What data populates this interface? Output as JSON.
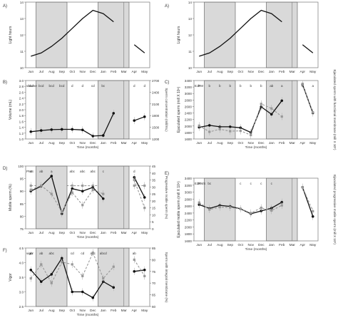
{
  "months": [
    "Jun",
    "Jul",
    "Aug",
    "Sep",
    "Oct",
    "Nov",
    "Dec",
    "Jan",
    "Feb",
    "Mar",
    "Apr",
    "May"
  ],
  "time_label": "Time (months)",
  "colors": {
    "solid": "#111111",
    "dashed": "#999999",
    "shade": "#d9d9d9"
  },
  "chart_data": [
    {
      "id": "A_left",
      "type": "line",
      "panel": "A)",
      "ylabel": "Light hours",
      "ylim": [
        10,
        14
      ],
      "yticks": [
        10,
        11,
        12,
        13,
        14
      ],
      "series": [
        {
          "values": [
            10.7,
            10.9,
            11.3,
            11.8,
            12.4,
            13.0,
            13.5,
            13.3,
            12.8,
            12.1,
            11.4,
            10.9
          ]
        }
      ],
      "shaded": [
        [
          1,
          3
        ],
        [
          7,
          9
        ]
      ]
    },
    {
      "id": "A_right",
      "type": "line",
      "panel": "A)",
      "ylabel": "Light hours",
      "ylim": [
        10,
        14
      ],
      "yticks": [
        10,
        11,
        12,
        13,
        14
      ],
      "series": [
        {
          "values": [
            10.7,
            10.9,
            11.3,
            11.8,
            12.4,
            13.0,
            13.5,
            13.3,
            12.8,
            12.1,
            11.4,
            10.9
          ]
        }
      ],
      "shaded": [
        [
          1,
          3
        ],
        [
          7,
          9
        ]
      ]
    },
    {
      "id": "B",
      "type": "line",
      "panel": "B)",
      "ylabel": "Volume (mL)",
      "ylabel2": "Sperm concentration (mill/mL)",
      "ylim": [
        1.0,
        3.0
      ],
      "yticks": [
        1.0,
        1.2,
        1.4,
        1.6,
        1.8,
        2.0,
        2.2,
        2.4,
        2.6,
        2.8,
        3.0
      ],
      "ylim2": [
        1200,
        2700
      ],
      "yticks2": [
        1200,
        1500,
        1800,
        2100,
        2400,
        2700
      ],
      "sig_label": "volume",
      "sig_letters": [
        "bcd",
        "bcd",
        "bcd",
        "bcd",
        "d",
        "d",
        "cd",
        "bc",
        "",
        "",
        "d",
        "d"
      ],
      "sig_letters2": [
        "",
        "",
        "",
        "",
        "",
        "",
        "",
        "",
        "",
        "",
        "",
        ""
      ],
      "series": [
        {
          "style": "solid",
          "values": [
            1.25,
            1.29,
            1.32,
            1.33,
            1.33,
            1.31,
            1.1,
            1.12,
            1.88,
            null,
            1.63,
            1.76
          ]
        },
        {
          "style": "dashed",
          "values": [
            1.39,
            1.22,
            1.19,
            1.22,
            1.6,
            0.9,
            1.28,
            1.8,
            1.38,
            null,
            2.4,
            1.6
          ],
          "axis": 2
        }
      ],
      "shaded": [
        [
          1,
          3
        ],
        [
          7,
          9
        ]
      ]
    },
    {
      "id": "C",
      "type": "line",
      "panel": "C)",
      "ylabel": "Ejaculated sperm (mill X 10⁶)",
      "ylabel2": "Ejaculated sperm with functional membrane (mill X 10⁶)",
      "ylim": [
        1600,
        3400
      ],
      "yticks": [
        1600,
        1800,
        2000,
        2200,
        2400,
        2600,
        2800,
        3000,
        3200,
        3400
      ],
      "sig_label": "EJFM",
      "sig_letters": [
        "b",
        "b",
        "b",
        "b",
        "b",
        "b",
        "b",
        "ab",
        "a",
        "",
        "a",
        "a"
      ],
      "series": [
        {
          "style": "solid",
          "values": [
            1960,
            2020,
            1975,
            1975,
            1945,
            1800,
            2590,
            2360,
            2780,
            null,
            3280,
            2400
          ]
        },
        {
          "style": "dashed",
          "values": [
            2010,
            1820,
            1900,
            1840,
            1850,
            1720,
            2680,
            2540,
            2290,
            null,
            3300,
            2420
          ]
        }
      ],
      "shaded": [
        [
          1,
          3
        ],
        [
          7,
          9
        ]
      ]
    },
    {
      "id": "D",
      "type": "line",
      "panel": "D)",
      "ylabel": "Motile sperm (%)",
      "ylabel2": "Progressive motile sperm (%)",
      "ylim": [
        75,
        100
      ],
      "yticks": [
        75,
        80,
        85,
        90,
        95,
        100
      ],
      "ylim2": [
        0,
        45
      ],
      "yticks2": [
        0,
        5,
        10,
        15,
        20,
        25,
        30,
        35,
        40,
        45
      ],
      "sig_label": "PMS",
      "sig_letters": [
        "a",
        "ab",
        "a",
        "",
        "abc",
        "abc",
        "abc",
        "c",
        "",
        "",
        "d",
        ""
      ],
      "series": [
        {
          "style": "solid",
          "values": [
            90,
            92,
            96,
            81,
            91,
            90,
            91.5,
            87,
            null,
            null,
            95.5,
            87.5
          ]
        },
        {
          "style": "dashed",
          "values": [
            28,
            31,
            25,
            12,
            26,
            17,
            28,
            25,
            null,
            null,
            35,
            15
          ],
          "axis": 2
        }
      ],
      "shaded": [
        [
          1,
          3
        ],
        [
          7,
          9
        ]
      ]
    },
    {
      "id": "E",
      "type": "line",
      "panel": "E)",
      "ylabel": "Ejaculated motile sperm (mill X 10⁶)",
      "ylabel2": "Ejaculated progressive motile sperm (mill X 10⁶)",
      "ylim": [
        1600,
        3400
      ],
      "yticks": [
        1600,
        1800,
        2000,
        2200,
        2400,
        2600,
        2800,
        3000,
        3200,
        3400
      ],
      "sig_label": "EJPMS",
      "sig_letters": [
        "bc",
        "bc",
        "",
        "",
        "c",
        "c",
        "c",
        "c",
        "",
        "",
        "",
        ""
      ],
      "series": [
        {
          "style": "solid",
          "values": [
            2640,
            2530,
            2620,
            2590,
            2520,
            2380,
            2460,
            2540,
            2710,
            null,
            3140,
            2300
          ]
        },
        {
          "style": "dashed",
          "values": [
            2700,
            2500,
            2570,
            2560,
            2520,
            2400,
            2550,
            2470,
            2620,
            null,
            3140,
            2450
          ]
        }
      ],
      "shaded": [
        [
          1,
          3
        ],
        [
          7,
          9
        ]
      ]
    },
    {
      "id": "F",
      "type": "line",
      "panel": "F)",
      "ylabel": "Vigor",
      "ylabel2": "Sperm with integral membrane (%)",
      "ylim": [
        2.5,
        4.5
      ],
      "yticks": [
        2.5,
        3.0,
        3.5,
        4.0,
        4.5
      ],
      "ylim2": [
        60,
        85
      ],
      "yticks2": [
        60,
        65,
        70,
        75,
        80,
        85
      ],
      "sig_label": "vigor",
      "sig_letters": [
        "ab",
        "ab",
        "abc",
        "",
        "cd",
        "cd",
        "abc",
        "abcd",
        "",
        "",
        "ab",
        ""
      ],
      "sig_letters2": [
        "",
        "",
        "",
        "",
        "",
        "",
        "",
        "",
        "",
        "",
        "",
        ""
      ],
      "series": [
        {
          "style": "solid",
          "values": [
            3.75,
            3.35,
            3.6,
            4.15,
            3.0,
            3.0,
            2.8,
            3.35,
            3.15,
            null,
            3.7,
            3.75
          ]
        },
        {
          "style": "dashed",
          "values": [
            72,
            78,
            70,
            79,
            78,
            73,
            83,
            72,
            77,
            null,
            80,
            73
          ],
          "axis": 2
        }
      ],
      "shaded": [
        [
          1,
          3
        ],
        [
          7,
          9
        ]
      ]
    }
  ]
}
